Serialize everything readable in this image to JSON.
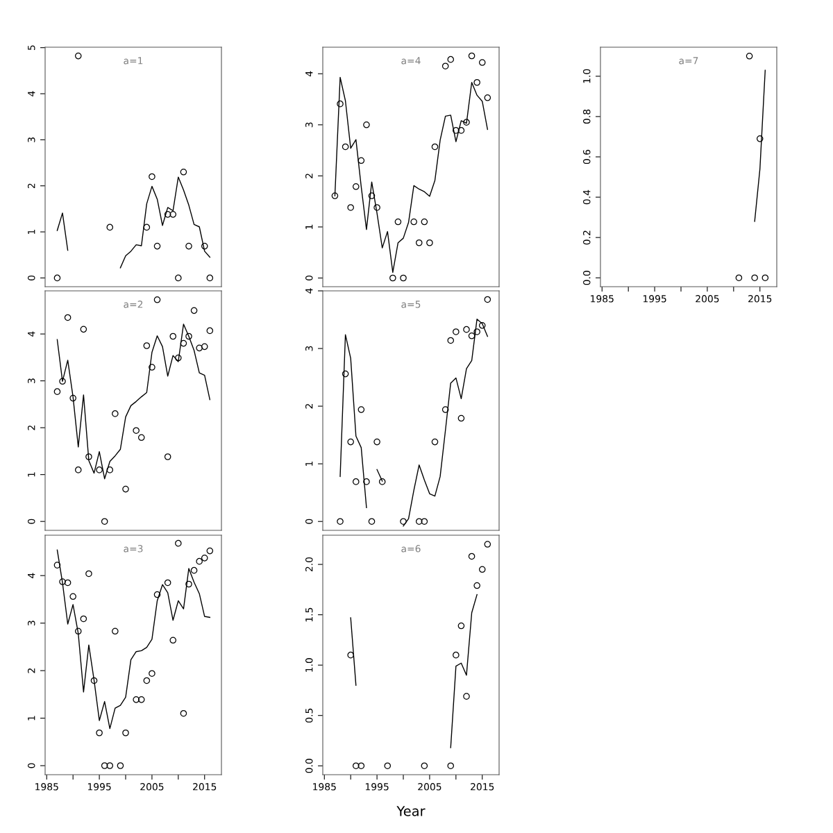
{
  "chart_data": [
    {
      "type": "scatter",
      "title": "a=1",
      "xlim": [
        1984.7,
        2018.2
      ],
      "ylim": [
        -0.19,
        5.01
      ],
      "yticks": [
        0,
        1,
        2,
        3,
        4,
        5
      ],
      "tick_labels": "y",
      "grid": false,
      "marker": "circle",
      "series": [
        {
          "type": "scatter",
          "color": "#000000",
          "x": [
            1987,
            1991,
            1997,
            2004,
            2005,
            2006,
            2008,
            2009,
            2010,
            2011,
            2012,
            2015,
            2016
          ],
          "values": [
            0,
            4.82,
            1.1,
            1.1,
            2.2,
            0.69,
            1.38,
            1.38,
            0,
            2.3,
            0.69,
            0.69,
            0
          ]
        },
        {
          "type": "line",
          "color": "#000000",
          "marker": "none",
          "line_style": "solid",
          "x": [
            1987,
            1988,
            1989,
            1990,
            1991,
            1992,
            1993,
            1994,
            1995,
            1996,
            1997,
            1998,
            1999,
            2000,
            2001,
            2002,
            2003,
            2004,
            2005,
            2006,
            2007,
            2008,
            2009,
            2010,
            2011,
            2012,
            2013,
            2014,
            2015,
            2016
          ],
          "values": [
            1.03,
            1.41,
            0.6,
            null,
            null,
            null,
            null,
            null,
            null,
            null,
            null,
            null,
            0.22,
            0.48,
            0.58,
            0.72,
            0.7,
            1.61,
            1.99,
            1.71,
            1.14,
            1.53,
            1.46,
            2.19,
            1.91,
            1.58,
            1.16,
            1.11,
            0.58,
            0.45
          ]
        }
      ]
    },
    {
      "type": "scatter",
      "title": "a=2",
      "xlim": [
        1984.7,
        2018.2
      ],
      "ylim": [
        -0.19,
        4.92
      ],
      "yticks": [
        0,
        1,
        2,
        3,
        4
      ],
      "tick_labels": "y",
      "grid": false,
      "marker": "circle",
      "series": [
        {
          "type": "scatter",
          "color": "#000000",
          "x": [
            1987,
            1988,
            1989,
            1990,
            1991,
            1992,
            1993,
            1995,
            1996,
            1997,
            1998,
            2000,
            2002,
            2003,
            2004,
            2005,
            2006,
            2008,
            2009,
            2010,
            2011,
            2012,
            2013,
            2014,
            2015,
            2016
          ],
          "values": [
            2.77,
            2.99,
            4.35,
            2.63,
            1.1,
            4.1,
            1.38,
            1.1,
            0,
            1.1,
            2.3,
            0.69,
            1.94,
            1.79,
            3.75,
            3.29,
            4.73,
            1.38,
            3.95,
            3.49,
            3.8,
            3.95,
            4.5,
            3.7,
            3.73,
            4.07
          ]
        },
        {
          "type": "line",
          "color": "#000000",
          "marker": "none",
          "line_style": "solid",
          "x": [
            1987,
            1988,
            1989,
            1990,
            1991,
            1992,
            1993,
            1994,
            1995,
            1996,
            1997,
            1998,
            1999,
            2000,
            2001,
            2002,
            2003,
            2004,
            2005,
            2006,
            2007,
            2008,
            2009,
            2010,
            2011,
            2012,
            2013,
            2014,
            2015,
            2016
          ],
          "values": [
            3.88,
            2.99,
            3.44,
            2.66,
            1.59,
            2.7,
            1.3,
            1.03,
            1.49,
            0.91,
            1.28,
            1.4,
            1.54,
            2.23,
            2.47,
            2.56,
            2.66,
            2.75,
            3.61,
            3.96,
            3.73,
            3.1,
            3.54,
            3.41,
            4.21,
            3.95,
            3.65,
            3.17,
            3.12,
            2.6
          ]
        }
      ]
    },
    {
      "type": "scatter",
      "title": "a=3",
      "xlim": [
        1984.7,
        2018.2
      ],
      "ylim": [
        -0.19,
        4.85
      ],
      "xticks": [
        1985,
        {
          "value": 1990,
          "label": null
        },
        1995,
        {
          "value": 2000,
          "label": null
        },
        2005,
        {
          "value": 2010,
          "label": null
        },
        2015
      ],
      "yticks": [
        0,
        1,
        2,
        3,
        4
      ],
      "grid": false,
      "marker": "circle",
      "series": [
        {
          "type": "scatter",
          "color": "#000000",
          "x": [
            1987,
            1988,
            1989,
            1990,
            1991,
            1992,
            1993,
            1994,
            1995,
            1996,
            1997,
            1998,
            1999,
            2000,
            2002,
            2003,
            2004,
            2005,
            2006,
            2008,
            2009,
            2010,
            2011,
            2012,
            2013,
            2014,
            2015,
            2016
          ],
          "values": [
            4.22,
            3.87,
            3.85,
            3.56,
            2.83,
            3.09,
            4.04,
            1.79,
            0.69,
            0,
            0,
            2.83,
            0,
            0.69,
            1.39,
            1.39,
            1.79,
            1.94,
            3.6,
            3.85,
            2.64,
            4.68,
            1.1,
            3.82,
            4.11,
            4.3,
            4.37,
            4.52
          ]
        },
        {
          "type": "line",
          "color": "#000000",
          "marker": "none",
          "line_style": "solid",
          "x": [
            1987,
            1988,
            1989,
            1990,
            1991,
            1992,
            1993,
            1994,
            1995,
            1996,
            1997,
            1998,
            1999,
            2000,
            2001,
            2002,
            2003,
            2004,
            2005,
            2006,
            2007,
            2008,
            2009,
            2010,
            2011,
            2012,
            2013,
            2014,
            2015,
            2016
          ],
          "values": [
            4.54,
            3.85,
            2.98,
            3.39,
            2.78,
            1.55,
            2.54,
            1.8,
            0.95,
            1.35,
            0.78,
            1.21,
            1.27,
            1.44,
            2.23,
            2.4,
            2.42,
            2.49,
            2.66,
            3.47,
            3.81,
            3.64,
            3.06,
            3.47,
            3.3,
            4.15,
            3.86,
            3.62,
            3.14,
            3.12
          ]
        }
      ]
    },
    {
      "type": "scatter",
      "title": "a=4",
      "xlim": [
        1984.7,
        2018.2
      ],
      "ylim": [
        -0.17,
        4.52
      ],
      "yticks": [
        0,
        1,
        2,
        3,
        4
      ],
      "tick_labels": "y",
      "grid": false,
      "marker": "circle",
      "series": [
        {
          "type": "scatter",
          "color": "#000000",
          "x": [
            1987,
            1988,
            1989,
            1990,
            1991,
            1992,
            1993,
            1994,
            1995,
            1998,
            1999,
            2000,
            2002,
            2003,
            2004,
            2005,
            2006,
            2008,
            2009,
            2010,
            2011,
            2012,
            2013,
            2014,
            2015,
            2016
          ],
          "values": [
            1.61,
            3.41,
            2.57,
            1.38,
            1.79,
            2.3,
            3.0,
            1.61,
            1.38,
            0,
            1.1,
            0,
            1.1,
            0.69,
            1.1,
            0.69,
            2.57,
            4.15,
            4.28,
            2.89,
            2.89,
            3.05,
            4.35,
            3.83,
            4.22,
            3.53
          ]
        },
        {
          "type": "line",
          "color": "#000000",
          "marker": "none",
          "line_style": "solid",
          "x": [
            1987,
            1988,
            1989,
            1990,
            1991,
            1992,
            1993,
            1994,
            1995,
            1996,
            1997,
            1998,
            1999,
            2000,
            2001,
            2002,
            2003,
            2004,
            2005,
            2006,
            2007,
            2008,
            2009,
            2010,
            2011,
            2012,
            2013,
            2014,
            2015,
            2016
          ],
          "values": [
            1.61,
            3.93,
            3.47,
            2.54,
            2.71,
            1.79,
            0.95,
            1.88,
            1.27,
            0.59,
            0.91,
            0.11,
            0.69,
            0.78,
            1.09,
            1.81,
            1.74,
            1.69,
            1.6,
            1.91,
            2.7,
            3.17,
            3.19,
            2.67,
            3.08,
            3.03,
            3.83,
            3.58,
            3.46,
            2.91
          ]
        }
      ]
    },
    {
      "type": "scatter",
      "title": "a=5",
      "xlim": [
        1984.7,
        2018.2
      ],
      "ylim": [
        -0.154,
        4.0
      ],
      "yticks": [
        0,
        1,
        2,
        3,
        4
      ],
      "tick_labels": "y",
      "grid": false,
      "marker": "circle",
      "series": [
        {
          "type": "scatter",
          "color": "#000000",
          "x": [
            1988,
            1989,
            1990,
            1991,
            1992,
            1993,
            1994,
            1995,
            1996,
            2000,
            2003,
            2004,
            2006,
            2008,
            2009,
            2010,
            2011,
            2012,
            2013,
            2014,
            2015,
            2016
          ],
          "values": [
            0,
            2.56,
            1.38,
            0.69,
            1.94,
            0.69,
            0,
            1.38,
            0.69,
            0,
            0,
            0,
            1.38,
            1.94,
            3.14,
            3.29,
            1.79,
            3.33,
            3.22,
            3.29,
            3.4,
            3.85
          ]
        },
        {
          "type": "line",
          "color": "#000000",
          "marker": "none",
          "line_style": "solid",
          "x": [
            1988,
            1989,
            1990,
            1991,
            1992,
            1993,
            1994,
            1995,
            1996,
            1997,
            1998,
            1999,
            2000,
            2001,
            2002,
            2003,
            2004,
            2005,
            2006,
            2007,
            2008,
            2009,
            2010,
            2011,
            2012,
            2013,
            2014,
            2015,
            2016
          ],
          "values": [
            0.78,
            3.24,
            2.83,
            1.48,
            1.28,
            0.24,
            null,
            0.9,
            0.7,
            null,
            null,
            null,
            -0.08,
            0.05,
            0.54,
            0.98,
            0.72,
            0.48,
            0.44,
            0.78,
            1.58,
            2.4,
            2.49,
            2.13,
            2.65,
            2.79,
            3.51,
            3.43,
            3.21
          ]
        }
      ]
    },
    {
      "type": "scatter",
      "title": "a=6",
      "xlabel": "Year",
      "xlim": [
        1984.7,
        2018.2
      ],
      "ylim": [
        -0.088,
        2.29
      ],
      "xticks": [
        1985,
        {
          "value": 1990,
          "label": null
        },
        1995,
        {
          "value": 2000,
          "label": null
        },
        2005,
        {
          "value": 2010,
          "label": null
        },
        2015
      ],
      "yticks": [
        {
          "value": 0,
          "label": "0.0"
        },
        0.5,
        {
          "value": 1,
          "label": "1.0"
        },
        1.5,
        {
          "value": 2,
          "label": "2.0"
        }
      ],
      "grid": false,
      "marker": "circle",
      "series": [
        {
          "type": "scatter",
          "color": "#000000",
          "x": [
            1990,
            1991,
            1992,
            1997,
            2004,
            2009,
            2010,
            2011,
            2012,
            2013,
            2014,
            2015,
            2016
          ],
          "values": [
            1.1,
            0,
            0,
            0,
            0,
            0,
            1.1,
            1.39,
            0.69,
            2.08,
            1.79,
            1.95,
            2.2
          ]
        },
        {
          "type": "line",
          "color": "#000000",
          "marker": "none",
          "line_style": "solid",
          "x": [
            1990,
            1991,
            1992,
            1993,
            1994,
            1995,
            1996,
            1997,
            1998,
            1999,
            2000,
            2001,
            2002,
            2003,
            2004,
            2005,
            2006,
            2007,
            2008,
            2009,
            2010,
            2011,
            2012,
            2013,
            2014
          ],
          "values": [
            1.47,
            0.8,
            null,
            null,
            null,
            null,
            null,
            null,
            null,
            null,
            null,
            null,
            null,
            null,
            null,
            null,
            null,
            null,
            null,
            0.18,
            0.99,
            1.02,
            0.9,
            1.52,
            1.7
          ]
        }
      ]
    },
    {
      "type": "scatter",
      "title": "a=7",
      "xlim": [
        1984.7,
        2018.2
      ],
      "ylim": [
        -0.044,
        1.144
      ],
      "xticks": [
        1985,
        {
          "value": 1990,
          "label": null
        },
        1995,
        {
          "value": 2000,
          "label": null
        },
        2005,
        {
          "value": 2010,
          "label": null
        },
        2015
      ],
      "yticks": [
        {
          "value": 0,
          "label": "0.0"
        },
        0.2,
        0.4,
        0.6,
        0.8,
        {
          "value": 1,
          "label": "1.0"
        }
      ],
      "grid": false,
      "marker": "circle",
      "series": [
        {
          "type": "scatter",
          "color": "#000000",
          "x": [
            2011,
            2013,
            2014,
            2015,
            2016
          ],
          "values": [
            0,
            1.1,
            0,
            0.69,
            0
          ]
        },
        {
          "type": "line",
          "color": "#000000",
          "marker": "none",
          "line_style": "solid",
          "x": [
            2014,
            2015,
            2016
          ],
          "values": [
            0.28,
            0.54,
            1.03
          ]
        }
      ]
    }
  ]
}
